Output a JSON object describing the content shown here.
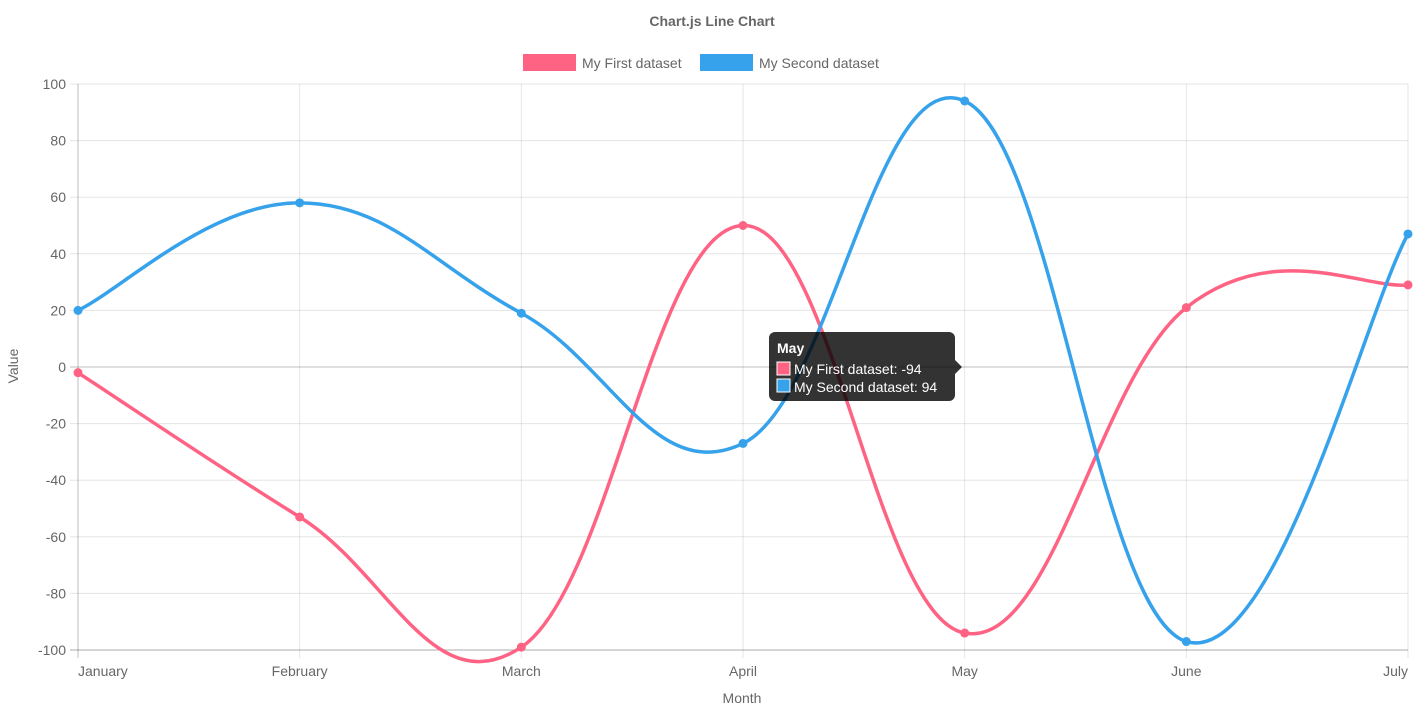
{
  "chart_data": {
    "type": "line",
    "title": "Chart.js Line Chart",
    "categories": [
      "January",
      "February",
      "March",
      "April",
      "May",
      "June",
      "July"
    ],
    "series": [
      {
        "name": "My First dataset",
        "color": "#ff6384",
        "values": [
          -2,
          -53,
          -99,
          50,
          -94,
          21,
          29
        ]
      },
      {
        "name": "My Second dataset",
        "color": "#36a2eb",
        "values": [
          20,
          58,
          19,
          -27,
          94,
          -97,
          47
        ]
      }
    ],
    "xlabel": "Month",
    "ylabel": "Value",
    "ylim": [
      -100,
      100
    ],
    "yticks": [
      "100",
      "80",
      "60",
      "40",
      "20",
      "0",
      "-20",
      "-40",
      "-60",
      "-80",
      "-100"
    ],
    "grid": true,
    "legend": "top-center",
    "tooltip": {
      "title": "May",
      "lines": [
        "My First dataset: -94",
        "My Second dataset: 94"
      ]
    }
  }
}
